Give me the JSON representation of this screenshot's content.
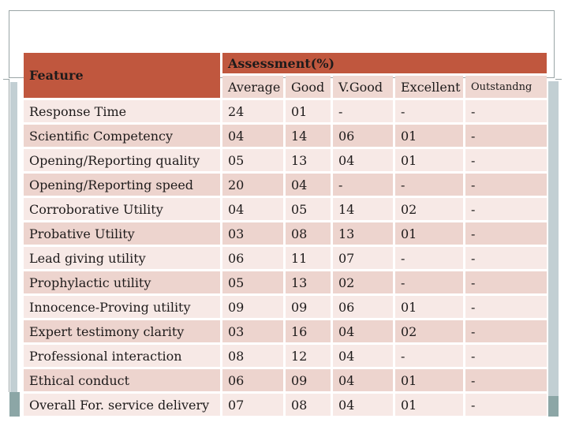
{
  "slide": {
    "table": {
      "feature_header": "Feature",
      "assessment_header": "Assessment(%)",
      "columns": [
        "Average",
        "Good",
        "V.Good",
        "Excellent",
        "Outstandng"
      ],
      "rows": [
        {
          "feature": "Response Time",
          "values": [
            "24",
            "01",
            "-",
            "-",
            "-"
          ]
        },
        {
          "feature": "Scientific Competency",
          "values": [
            "04",
            "14",
            "06",
            "01",
            "-"
          ]
        },
        {
          "feature": "Opening/Reporting quality",
          "values": [
            "05",
            "13",
            "04",
            "01",
            "-"
          ]
        },
        {
          "feature": "Opening/Reporting speed",
          "values": [
            "20",
            "04",
            "-",
            "-",
            "-"
          ]
        },
        {
          "feature": "Corroborative Utility",
          "values": [
            "04",
            "05",
            "14",
            "02",
            "-"
          ]
        },
        {
          "feature": "Probative Utility",
          "values": [
            "03",
            "08",
            "13",
            "01",
            "-"
          ]
        },
        {
          "feature": "Lead giving utility",
          "values": [
            "06",
            "11",
            "07",
            "-",
            "-"
          ]
        },
        {
          "feature": "Prophylactic utility",
          "values": [
            "05",
            "13",
            "02",
            "-",
            "-"
          ]
        },
        {
          "feature": "Innocence-Proving utility",
          "values": [
            "09",
            "09",
            "06",
            "01",
            "-"
          ]
        },
        {
          "feature": "Expert testimony clarity",
          "values": [
            "03",
            "16",
            "04",
            "02",
            "-"
          ]
        },
        {
          "feature": "Professional interaction",
          "values": [
            "08",
            "12",
            "04",
            "-",
            "-"
          ]
        },
        {
          "feature": "Ethical conduct",
          "values": [
            "06",
            "09",
            "04",
            "01",
            "-"
          ]
        },
        {
          "feature": "Overall For. service delivery",
          "values": [
            "07",
            "08",
            "04",
            "01",
            "-"
          ]
        }
      ]
    },
    "colors": {
      "header_bg": "#c0573e",
      "header_text": "#fdf6f1",
      "subheader_bg": "#efd8d2",
      "row_light": "#f7e9e6",
      "row_dark": "#edd4ce",
      "cell_text": "#1e1b1b",
      "gap": "#ffffff",
      "frame_line": "#9aa5a6",
      "accent_band": "#c2cfd3",
      "accent_cap": "#8ca6a6",
      "page_bg": "#ffffff"
    }
  },
  "chart_data": {
    "type": "table",
    "title": "Assessment(%)",
    "columns": [
      "Feature",
      "Average",
      "Good",
      "V.Good",
      "Excellent",
      "Outstandng"
    ],
    "rows": [
      [
        "Response Time",
        "24",
        "01",
        "-",
        "-",
        "-"
      ],
      [
        "Scientific Competency",
        "04",
        "14",
        "06",
        "01",
        "-"
      ],
      [
        "Opening/Reporting quality",
        "05",
        "13",
        "04",
        "01",
        "-"
      ],
      [
        "Opening/Reporting speed",
        "20",
        "04",
        "-",
        "-",
        "-"
      ],
      [
        "Corroborative Utility",
        "04",
        "05",
        "14",
        "02",
        "-"
      ],
      [
        "Probative Utility",
        "03",
        "08",
        "13",
        "01",
        "-"
      ],
      [
        "Lead giving utility",
        "06",
        "11",
        "07",
        "-",
        "-"
      ],
      [
        "Prophylactic utility",
        "05",
        "13",
        "02",
        "-",
        "-"
      ],
      [
        "Innocence-Proving utility",
        "09",
        "09",
        "06",
        "01",
        "-"
      ],
      [
        "Expert testimony clarity",
        "03",
        "16",
        "04",
        "02",
        "-"
      ],
      [
        "Professional interaction",
        "08",
        "12",
        "04",
        "-",
        "-"
      ],
      [
        "Ethical conduct",
        "06",
        "09",
        "04",
        "01",
        "-"
      ],
      [
        "Overall For. service delivery",
        "07",
        "08",
        "04",
        "01",
        "-"
      ]
    ]
  }
}
